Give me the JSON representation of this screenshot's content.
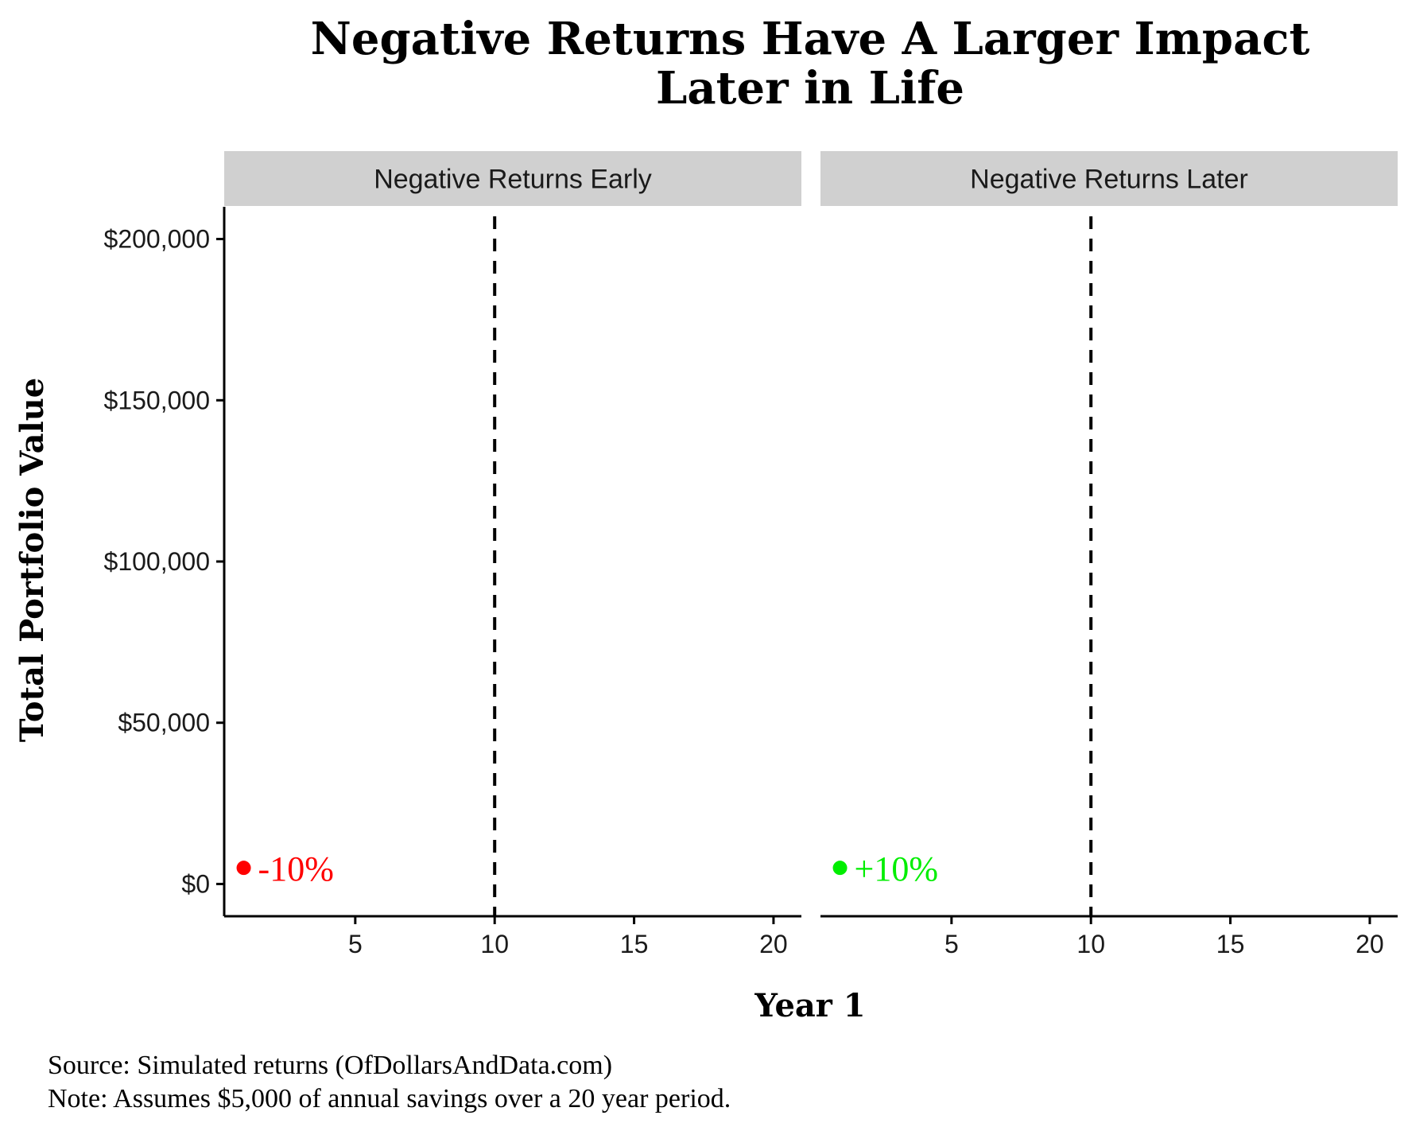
{
  "chart_data": {
    "type": "scatter",
    "title": "Negative Returns Have A Larger Impact Later in Life",
    "title_lines": [
      "Negative Returns Have A Larger Impact",
      "Later in Life"
    ],
    "xlabel": "Year 1",
    "ylabel": "Total Portfolio Value",
    "xlim": [
      0.3,
      21
    ],
    "ylim": [
      -10000,
      210000
    ],
    "x_ticks": [
      5,
      10,
      15,
      20
    ],
    "y_ticks": [
      0,
      50000,
      100000,
      150000,
      200000
    ],
    "y_tick_labels": [
      "$0",
      "$50,000",
      "$100,000",
      "$150,000",
      "$200,000"
    ],
    "grid": false,
    "vline_x": 10,
    "panels": [
      {
        "strip_label": "Negative Returns Early",
        "points": [
          {
            "x": 1,
            "y": 5000,
            "label": "-10%",
            "color": "#ff0000"
          }
        ]
      },
      {
        "strip_label": "Negative Returns Later",
        "points": [
          {
            "x": 1,
            "y": 5000,
            "label": "+10%",
            "color": "#00ee00"
          }
        ]
      }
    ]
  },
  "caption": {
    "source": "Source: Simulated returns (OfDollarsAndData.com)",
    "note": "Note:  Assumes $5,000 of annual savings over a 20 year period."
  }
}
